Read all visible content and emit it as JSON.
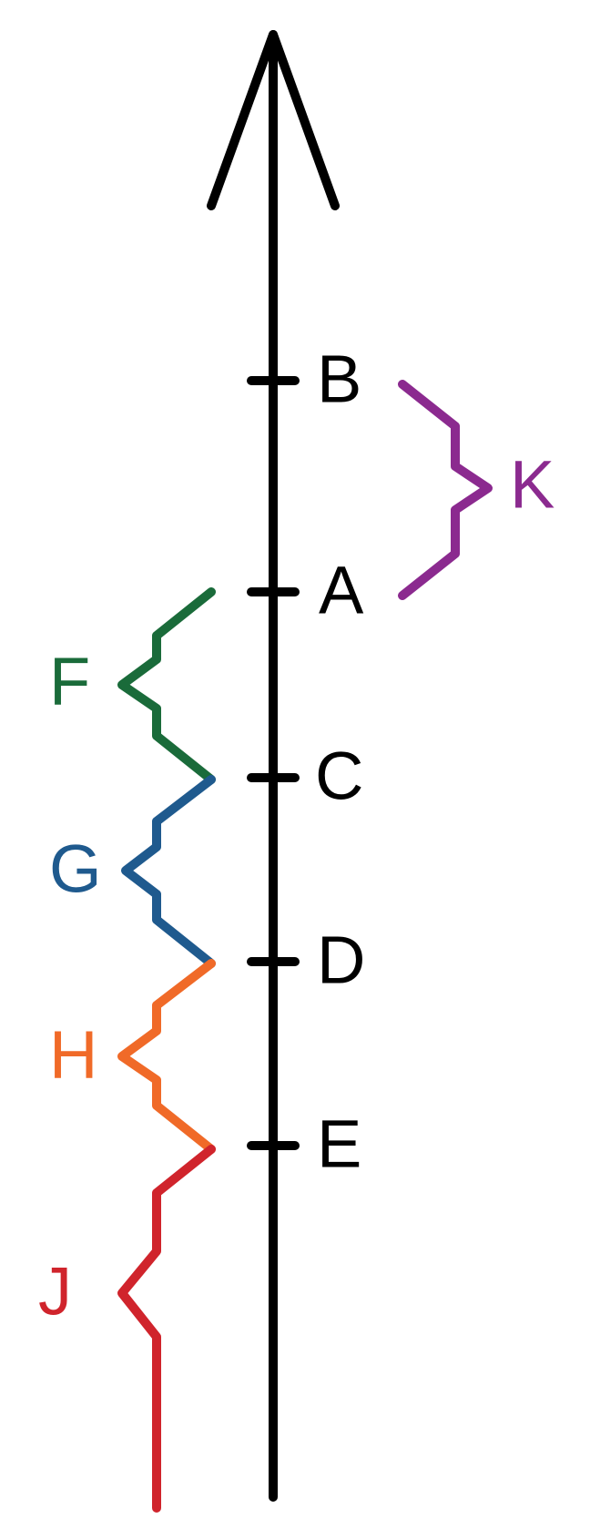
{
  "axis": {
    "points": [
      {
        "id": "B",
        "label": "B"
      },
      {
        "id": "A",
        "label": "A"
      },
      {
        "id": "C",
        "label": "C"
      },
      {
        "id": "D",
        "label": "D"
      },
      {
        "id": "E",
        "label": "E"
      }
    ]
  },
  "braces": [
    {
      "id": "K",
      "label": "K",
      "color": "#8b2a8f",
      "from": "B",
      "to": "A",
      "side": "right"
    },
    {
      "id": "F",
      "label": "F",
      "color": "#1a6b3a",
      "from": "A",
      "to": "C",
      "side": "left"
    },
    {
      "id": "G",
      "label": "G",
      "color": "#1f5a8e",
      "from": "C",
      "to": "D",
      "side": "left"
    },
    {
      "id": "H",
      "label": "H",
      "color": "#f06a28",
      "from": "D",
      "to": "E",
      "side": "left"
    },
    {
      "id": "J",
      "label": "J",
      "color": "#d0242c",
      "from": "E",
      "to": "end",
      "side": "left"
    }
  ]
}
